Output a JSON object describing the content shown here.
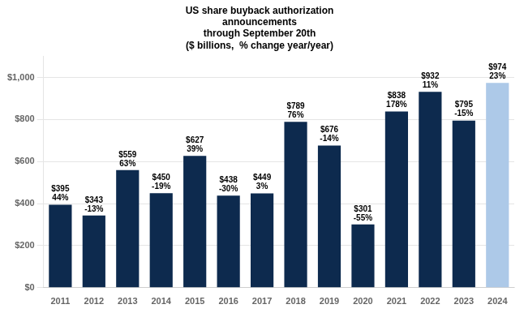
{
  "chart_data": {
    "type": "bar",
    "title": [
      "US share buyback authorization",
      "announcements",
      "through September 20th",
      "($ billions,  % change year/year)"
    ],
    "categories": [
      "2011",
      "2012",
      "2013",
      "2014",
      "2015",
      "2016",
      "2017",
      "2018",
      "2019",
      "2020",
      "2021",
      "2022",
      "2023",
      "2024"
    ],
    "values": [
      395,
      343,
      559,
      450,
      627,
      438,
      449,
      789,
      676,
      301,
      838,
      932,
      795,
      974
    ],
    "value_labels": [
      "$395",
      "$343",
      "$559",
      "$450",
      "$627",
      "$438",
      "$449",
      "$789",
      "$676",
      "$301",
      "$838",
      "$932",
      "$795",
      "$974"
    ],
    "pct_changes": [
      "44%",
      "-13%",
      "63%",
      "-19%",
      "39%",
      "-30%",
      "3%",
      "76%",
      "-14%",
      "-55%",
      "178%",
      "11%",
      "-15%",
      "23%"
    ],
    "colors": [
      "#0d2a4e",
      "#0d2a4e",
      "#0d2a4e",
      "#0d2a4e",
      "#0d2a4e",
      "#0d2a4e",
      "#0d2a4e",
      "#0d2a4e",
      "#0d2a4e",
      "#0d2a4e",
      "#0d2a4e",
      "#0d2a4e",
      "#0d2a4e",
      "#adc9e8"
    ],
    "ylim": [
      0,
      1100
    ],
    "yticks": [
      {
        "value": 0,
        "label": "$0"
      },
      {
        "value": 200,
        "label": "$200"
      },
      {
        "value": 400,
        "label": "$400"
      },
      {
        "value": 600,
        "label": "$600"
      },
      {
        "value": 800,
        "label": "$800"
      },
      {
        "value": 1000,
        "label": "$1,000"
      }
    ],
    "grid": "y",
    "data_labels": true
  }
}
